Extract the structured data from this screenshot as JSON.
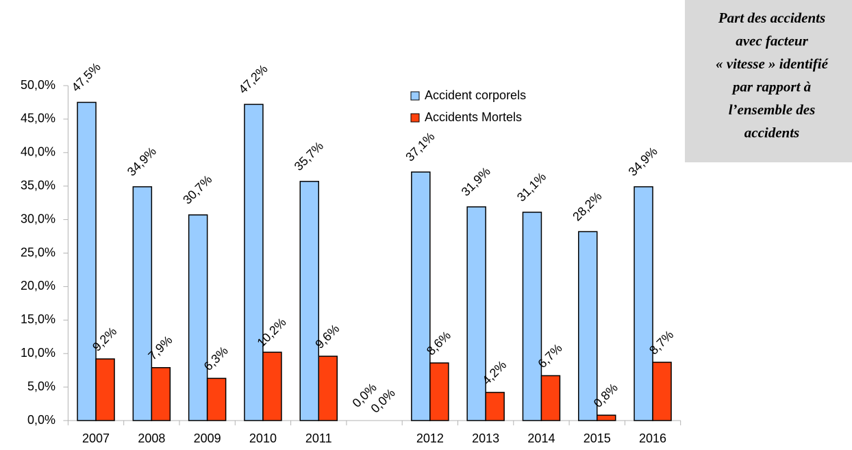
{
  "chart_data": {
    "type": "bar",
    "annotations": [
      "Part des accidents",
      "avec facteur",
      "« vitesse » identifié",
      "par rapport à",
      "l’ensemble des",
      "accidents"
    ],
    "categories": [
      "2007",
      "2008",
      "2009",
      "2010",
      "2011",
      null,
      "2012",
      "2013",
      "2014",
      "2015",
      "2016"
    ],
    "series": [
      {
        "name": "Accident corporels",
        "color": "#99ccff",
        "values": [
          47.5,
          34.9,
          30.7,
          47.2,
          35.7,
          0,
          37.1,
          31.9,
          31.1,
          28.2,
          34.9
        ],
        "value_labels": [
          "47,5%",
          "34,9%",
          "30,7%",
          "47,2%",
          "35,7%",
          "0,0%",
          "37,1%",
          "31,9%",
          "31,1%",
          "28,2%",
          "34,9%"
        ]
      },
      {
        "name": "Accidents Mortels",
        "color": "#ff420e",
        "values": [
          9.2,
          7.9,
          6.3,
          10.2,
          9.6,
          0,
          8.6,
          4.2,
          6.7,
          0.8,
          8.7
        ],
        "value_labels": [
          "9,2%",
          "7,9%",
          "6,3%",
          "10,2%",
          "9,6%",
          "0,0%",
          "8,6%",
          "4,2%",
          "6,7%",
          "0,8%",
          "8,7%"
        ]
      }
    ],
    "ylim": [
      0,
      50
    ],
    "yticks": [
      {
        "value": 0,
        "label": "0,0%"
      },
      {
        "value": 5,
        "label": "5,0%"
      },
      {
        "value": 10,
        "label": "10,0%"
      },
      {
        "value": 15,
        "label": "15,0%"
      },
      {
        "value": 20,
        "label": "20,0%"
      },
      {
        "value": 25,
        "label": "25,0%"
      },
      {
        "value": 30,
        "label": "30,0%"
      },
      {
        "value": 35,
        "label": "35,0%"
      },
      {
        "value": 40,
        "label": "40,0%"
      },
      {
        "value": 45,
        "label": "45,0%"
      },
      {
        "value": 50,
        "label": "50,0%"
      }
    ],
    "grid": false,
    "legend": "top"
  }
}
